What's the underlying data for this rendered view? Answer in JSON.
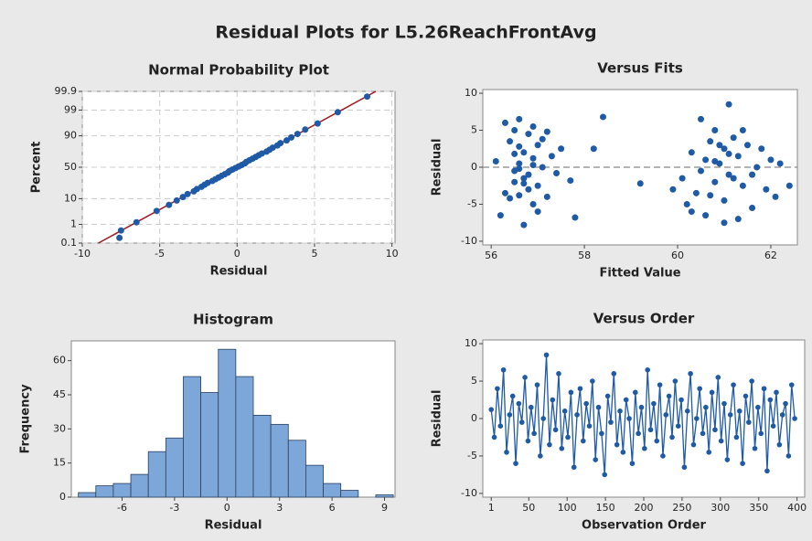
{
  "title": "Residual Plots for L5.26ReachFrontAvg",
  "chart_data": [
    {
      "type": "probability",
      "title": "Normal Probability Plot",
      "xlabel": "Residual",
      "ylabel": "Percent",
      "yscale": "normal",
      "grid": true,
      "color": "#1f5aa6",
      "xlim": [
        -10,
        10.2
      ],
      "ylim": [
        0.1,
        99.9
      ],
      "xticks": [
        -10,
        -5,
        0,
        5,
        10
      ],
      "yticks": [
        0.1,
        1,
        10,
        50,
        90,
        99,
        99.9
      ],
      "x": [
        -7.6,
        -7.5,
        -6.5,
        -5.2,
        -4.4,
        -3.9,
        -3.5,
        -3.2,
        -2.8,
        -2.6,
        -2.3,
        -2.1,
        -1.9,
        -1.6,
        -1.4,
        -1.2,
        -1.0,
        -0.8,
        -0.6,
        -0.5,
        -0.3,
        -0.1,
        0.1,
        0.3,
        0.5,
        0.6,
        0.8,
        1.0,
        1.2,
        1.4,
        1.6,
        1.9,
        2.1,
        2.3,
        2.6,
        2.8,
        3.2,
        3.5,
        3.9,
        4.4,
        5.2,
        6.5,
        8.4
      ],
      "values": [
        0.2,
        0.5,
        1.25,
        3.75,
        6.25,
        8.75,
        11.25,
        13.75,
        16.25,
        18.75,
        21.25,
        23.75,
        26.25,
        28.75,
        31.25,
        33.75,
        36.25,
        38.75,
        41.25,
        43.75,
        46.25,
        48.75,
        51.25,
        53.75,
        56.25,
        58.75,
        61.25,
        63.75,
        66.25,
        68.75,
        71.25,
        73.75,
        76.25,
        78.75,
        81.25,
        83.75,
        86.25,
        88.75,
        91.25,
        93.75,
        96.25,
        98.75,
        99.8
      ],
      "fit_line": {
        "x": [
          -8.96,
          8.96
        ],
        "values": [
          0.1,
          99.9
        ],
        "color": "#a0191e"
      }
    },
    {
      "type": "scatter",
      "title": "Versus Fits",
      "xlabel": "Fitted Value",
      "ylabel": "Residual",
      "color": "#1f5aa6",
      "xlim": [
        55.82,
        62.57
      ],
      "ylim": [
        -10.5,
        10.5
      ],
      "xticks": [
        56,
        58,
        60,
        62
      ],
      "yticks": [
        -10,
        -5,
        0,
        5,
        10
      ],
      "reference_line": 0,
      "x": [
        56.3,
        56.4,
        56.5,
        56.5,
        56.6,
        56.6,
        56.7,
        56.7,
        56.8,
        56.8,
        56.9,
        56.9,
        57.0,
        57.0,
        57.1,
        57.2,
        57.3,
        57.4,
        57.5,
        57.8,
        56.1,
        56.2,
        56.4,
        56.5,
        56.6,
        56.7,
        56.8,
        56.9,
        57.0,
        57.1,
        56.5,
        56.6,
        56.7,
        56.3,
        56.9,
        57.2,
        58.2,
        58.4,
        57.7,
        56.6,
        59.9,
        60.1,
        60.2,
        60.3,
        60.4,
        60.5,
        60.6,
        60.6,
        60.7,
        60.8,
        60.8,
        60.9,
        61.0,
        61.0,
        61.1,
        61.1,
        61.2,
        61.3,
        61.3,
        61.4,
        61.5,
        61.6,
        61.7,
        61.8,
        61.9,
        62.0,
        62.1,
        62.2,
        62.4,
        61.0,
        60.5,
        60.7,
        60.9,
        61.2,
        61.4,
        61.1,
        60.3,
        61.6,
        60.8,
        59.2
      ],
      "values": [
        6.0,
        3.5,
        -2.0,
        5.0,
        0.5,
        -3.8,
        2.0,
        -7.8,
        4.5,
        -1.0,
        1.2,
        -5.0,
        3.0,
        -2.5,
        0.0,
        -4.0,
        1.5,
        -0.8,
        2.5,
        -6.8,
        0.8,
        -6.5,
        -4.2,
        1.8,
        6.5,
        -1.5,
        -3.0,
        5.5,
        -6.0,
        3.8,
        -0.5,
        2.8,
        -2.2,
        -3.5,
        0.3,
        4.8,
        2.5,
        6.8,
        -1.8,
        -0.2,
        -3.0,
        -1.5,
        -5.0,
        2.0,
        -3.5,
        6.5,
        1.0,
        -6.5,
        3.5,
        -2.0,
        5.0,
        0.5,
        -4.5,
        2.5,
        8.5,
        -1.0,
        4.0,
        -7.0,
        1.5,
        -2.5,
        3.0,
        -5.5,
        0.0,
        2.5,
        -3.0,
        1.0,
        -4.0,
        0.5,
        -2.5,
        -7.5,
        -0.5,
        -3.8,
        3.0,
        -1.5,
        5.0,
        1.8,
        -6.0,
        -1.0,
        0.8,
        -2.2
      ]
    },
    {
      "type": "histogram",
      "title": "Histogram",
      "xlabel": "Residual",
      "ylabel": "Frequency",
      "color": "#7da7d9",
      "xlim": [
        -8.9,
        9.6
      ],
      "ylim": [
        0,
        68.7
      ],
      "xticks": [
        -6,
        -3,
        0,
        3,
        6,
        9
      ],
      "yticks": [
        0,
        15,
        30,
        45,
        60
      ],
      "bins": [
        -8.5,
        -7.5,
        -6.5,
        -5.5,
        -4.5,
        -3.5,
        -2.5,
        -1.5,
        -0.5,
        0.5,
        1.5,
        2.5,
        3.5,
        4.5,
        5.5,
        6.5,
        7.5,
        8.5,
        9.5
      ],
      "values": [
        2,
        5,
        6,
        10,
        20,
        26,
        53,
        46,
        65,
        53,
        36,
        32,
        25,
        14,
        6,
        3,
        0,
        1
      ]
    },
    {
      "type": "line",
      "title": "Versus Order",
      "xlabel": "Observation Order",
      "ylabel": "Residual",
      "color": "#1f5aa6",
      "xlim": [
        -10,
        410
      ],
      "ylim": [
        -10.5,
        10.5
      ],
      "xticks": [
        1,
        50,
        100,
        150,
        200,
        250,
        300,
        350,
        400
      ],
      "yticks": [
        -10,
        -5,
        0,
        5,
        10
      ],
      "x": [
        1,
        5,
        9,
        13,
        17,
        21,
        25,
        29,
        33,
        37,
        41,
        45,
        49,
        53,
        57,
        61,
        65,
        69,
        73,
        77,
        81,
        85,
        89,
        93,
        97,
        101,
        105,
        109,
        113,
        117,
        121,
        125,
        129,
        133,
        137,
        141,
        145,
        149,
        153,
        157,
        161,
        165,
        169,
        173,
        177,
        181,
        185,
        189,
        193,
        197,
        201,
        205,
        209,
        213,
        217,
        221,
        225,
        229,
        233,
        237,
        241,
        245,
        249,
        253,
        257,
        261,
        265,
        269,
        273,
        277,
        281,
        285,
        289,
        293,
        297,
        301,
        305,
        309,
        313,
        317,
        321,
        325,
        329,
        333,
        337,
        341,
        345,
        349,
        353,
        357,
        361,
        365,
        369,
        373,
        377,
        381,
        385,
        389,
        393,
        397
      ],
      "values": [
        1.2,
        -2.5,
        4.0,
        -1.0,
        6.5,
        -4.5,
        0.5,
        3.0,
        -6.0,
        2.0,
        -0.5,
        5.5,
        -3.0,
        1.5,
        -2.0,
        4.5,
        -5.0,
        0.0,
        8.5,
        -3.5,
        2.5,
        -1.5,
        6.0,
        -4.0,
        1.0,
        -2.5,
        3.5,
        -6.5,
        0.5,
        4.0,
        -3.0,
        2.0,
        -1.0,
        5.0,
        -5.5,
        1.5,
        -2.0,
        -7.5,
        3.0,
        -0.5,
        6.0,
        -3.5,
        1.0,
        -4.5,
        2.5,
        0.0,
        -6.0,
        3.5,
        -2.0,
        1.5,
        -4.0,
        6.5,
        -1.5,
        2.0,
        -3.0,
        4.5,
        -5.0,
        0.5,
        3.0,
        -2.5,
        5.0,
        -1.0,
        2.5,
        -6.5,
        1.0,
        6.0,
        -3.5,
        0.0,
        4.0,
        -2.0,
        1.5,
        -4.5,
        3.5,
        -1.5,
        5.5,
        -3.0,
        2.0,
        -5.5,
        0.5,
        4.5,
        -2.5,
        1.0,
        -6.0,
        3.0,
        -0.5,
        5.0,
        -4.0,
        1.5,
        -2.0,
        4.0,
        -7.0,
        2.5,
        -1.0,
        3.5,
        -3.5,
        0.5,
        2.0,
        -5.0,
        4.5,
        0.0
      ]
    }
  ]
}
